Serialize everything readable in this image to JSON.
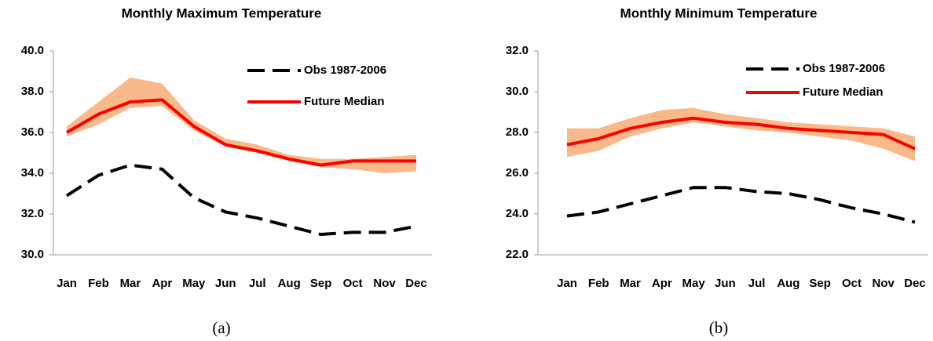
{
  "chart_data": [
    {
      "type": "line",
      "title": "Monthly Maximum Temperature",
      "caption": "(a)",
      "categories": [
        "Jan",
        "Feb",
        "Mar",
        "Apr",
        "May",
        "Jun",
        "Jul",
        "Aug",
        "Sep",
        "Oct",
        "Nov",
        "Dec"
      ],
      "ylim": [
        30,
        40
      ],
      "yticks": [
        {
          "value": 30,
          "label": "30.0"
        },
        {
          "value": 32,
          "label": "32.0"
        },
        {
          "value": 34,
          "label": "34.0"
        },
        {
          "value": 36,
          "label": "36.0"
        },
        {
          "value": 38,
          "label": "38.0"
        },
        {
          "value": 40,
          "label": "40.0"
        }
      ],
      "range": {
        "color": "#f9b98a",
        "upper": [
          36.3,
          37.5,
          38.7,
          38.4,
          36.6,
          35.7,
          35.4,
          34.9,
          34.7,
          34.7,
          34.8,
          34.9
        ],
        "lower": [
          35.8,
          36.4,
          37.2,
          37.3,
          36.1,
          35.3,
          35.0,
          34.6,
          34.3,
          34.2,
          34.0,
          34.1
        ]
      },
      "series": [
        {
          "name": "Obs 1987-2006",
          "color": "#000000",
          "dashed": true,
          "values": [
            32.9,
            33.9,
            34.4,
            34.2,
            32.8,
            32.1,
            31.8,
            31.4,
            31.0,
            31.1,
            31.1,
            31.4
          ]
        },
        {
          "name": "Future Median",
          "color": "#ff0000",
          "dashed": false,
          "values": [
            36.0,
            36.9,
            37.5,
            37.6,
            36.3,
            35.4,
            35.1,
            34.7,
            34.4,
            34.6,
            34.6,
            34.6
          ]
        }
      ]
    },
    {
      "type": "line",
      "title": "Monthly Minimum Temperature",
      "caption": "(b)",
      "categories": [
        "Jan",
        "Feb",
        "Mar",
        "Apr",
        "May",
        "Jun",
        "Jul",
        "Aug",
        "Sep",
        "Oct",
        "Nov",
        "Dec"
      ],
      "ylim": [
        22,
        32
      ],
      "yticks": [
        {
          "value": 22,
          "label": "22.0"
        },
        {
          "value": 24,
          "label": "24.0"
        },
        {
          "value": 26,
          "label": "26.0"
        },
        {
          "value": 28,
          "label": "28.0"
        },
        {
          "value": 30,
          "label": "30.0"
        },
        {
          "value": 32,
          "label": "32.0"
        }
      ],
      "range": {
        "color": "#f9b98a",
        "upper": [
          28.2,
          28.2,
          28.7,
          29.1,
          29.2,
          28.9,
          28.7,
          28.5,
          28.4,
          28.3,
          28.2,
          27.8
        ],
        "lower": [
          26.8,
          27.1,
          27.8,
          28.2,
          28.5,
          28.3,
          28.1,
          28.0,
          27.8,
          27.6,
          27.2,
          26.6
        ]
      },
      "series": [
        {
          "name": "Obs 1987-2006",
          "color": "#000000",
          "dashed": true,
          "values": [
            23.9,
            24.1,
            24.5,
            24.9,
            25.3,
            25.3,
            25.1,
            25.0,
            24.7,
            24.3,
            24.0,
            23.6
          ]
        },
        {
          "name": "Future Median",
          "color": "#ff0000",
          "dashed": false,
          "values": [
            27.4,
            27.7,
            28.2,
            28.5,
            28.7,
            28.5,
            28.4,
            28.2,
            28.1,
            28.0,
            27.9,
            27.2
          ]
        }
      ]
    }
  ]
}
